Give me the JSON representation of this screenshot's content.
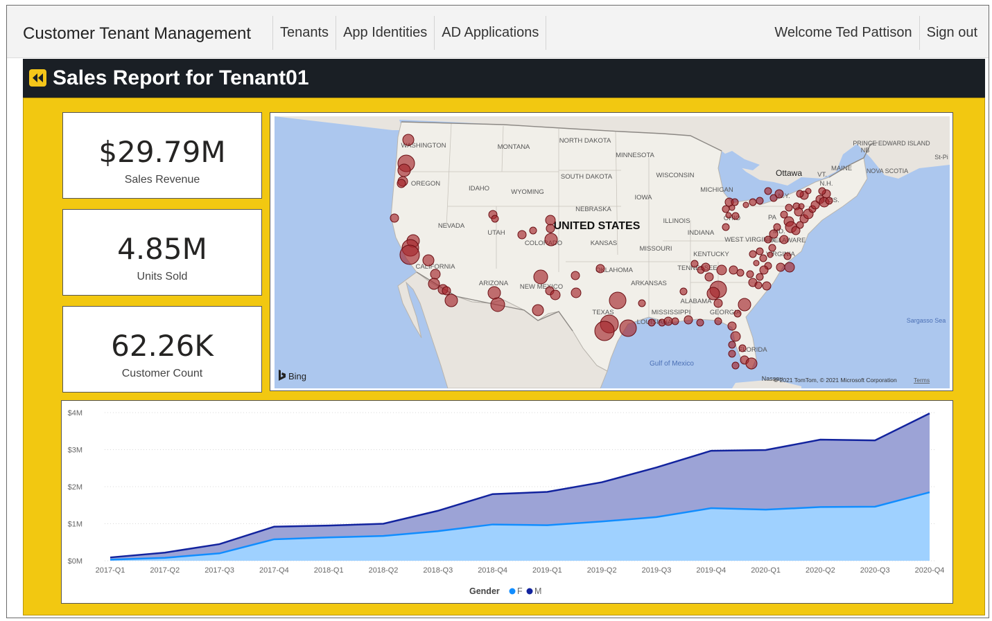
{
  "navbar": {
    "brand": "Customer Tenant Management",
    "links": [
      "Tenants",
      "App Identities",
      "AD Applications"
    ],
    "welcome": "Welcome Ted Pattison",
    "signout": "Sign out"
  },
  "report": {
    "title": "Sales Report for Tenant01",
    "back_icon": "rewind-icon"
  },
  "kpis": [
    {
      "value": "$29.79M",
      "label": "Sales Revenue"
    },
    {
      "value": "4.85M",
      "label": "Units Sold"
    },
    {
      "value": "62.26K",
      "label": "Customer Count"
    }
  ],
  "map": {
    "country_label": "UNITED STATES",
    "states": [
      "WASHINGTON",
      "MONTANA",
      "NORTH DAKOTA",
      "MINNESOTA",
      "OREGON",
      "IDAHO",
      "WYOMING",
      "SOUTH DAKOTA",
      "WISCONSIN",
      "MICHIGAN",
      "IOWA",
      "NEBRASKA",
      "NEVADA",
      "UTAH",
      "COLORADO",
      "KANSAS",
      "ILLINOIS",
      "INDIANA",
      "OHIO",
      "PA",
      "MISSOURI",
      "KENTUCKY",
      "WEST VIRGINIA",
      "VIRGINIA",
      "CALIFORNIA",
      "ARIZONA",
      "NEW MEXICO",
      "OKLAHOMA",
      "ARKANSAS",
      "TENNESSEE",
      "ALABAMA",
      "MISSISSIPPI",
      "GEORGIA",
      "TEXAS",
      "LOUISIANA",
      "FLORIDA",
      "N.Y.",
      "MD.",
      "DELAWARE",
      "VT.",
      "N.H.",
      "MASS.",
      "MAINE"
    ],
    "other_labels": [
      "Ottawa",
      "NB",
      "PRINCE EDWARD ISLAND",
      "NOVA SCOTIA",
      "St-Pi",
      "Gulf of Mexico",
      "Sargasso Sea",
      "Nassau"
    ],
    "attribution": "© 2021 TomTom, © 2021 Microsoft Corporation",
    "terms": "Terms",
    "provider": "Bing",
    "bubble_color": "#a4262c"
  },
  "chart_data": {
    "type": "area",
    "categories": [
      "2017-Q1",
      "2017-Q2",
      "2017-Q3",
      "2017-Q4",
      "2018-Q1",
      "2018-Q2",
      "2018-Q3",
      "2018-Q4",
      "2019-Q1",
      "2019-Q2",
      "2019-Q3",
      "2019-Q4",
      "2020-Q1",
      "2020-Q2",
      "2020-Q3",
      "2020-Q4"
    ],
    "series": [
      {
        "name": "F",
        "color": "#118dff",
        "fill": "#9fd1ff",
        "values": [
          0.03,
          0.08,
          0.2,
          0.58,
          0.63,
          0.67,
          0.8,
          0.98,
          0.96,
          1.06,
          1.18,
          1.42,
          1.38,
          1.45,
          1.46,
          1.85
        ]
      },
      {
        "name": "M",
        "color": "#12239e",
        "fill": "#9ca3d6",
        "values": [
          0.09,
          0.22,
          0.45,
          0.92,
          0.95,
          1.0,
          1.35,
          1.8,
          1.86,
          2.12,
          2.52,
          2.97,
          2.99,
          3.27,
          3.25,
          3.98
        ]
      }
    ],
    "stacked": false,
    "yticks": [
      "$0M",
      "$1M",
      "$2M",
      "$3M",
      "$4M"
    ],
    "ylim": [
      0,
      4
    ],
    "legend_title": "Gender",
    "legend_position": "bottom-center",
    "grid": true
  }
}
